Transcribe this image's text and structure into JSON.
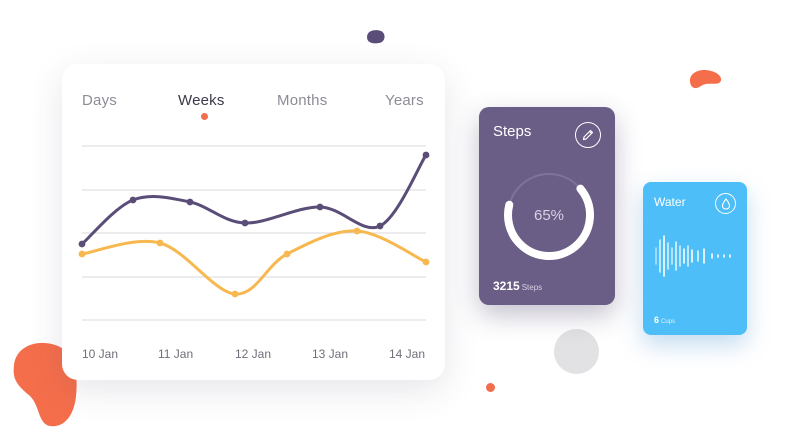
{
  "tabs": [
    {
      "label": "Days"
    },
    {
      "label": "Weeks"
    },
    {
      "label": "Months"
    },
    {
      "label": "Years"
    }
  ],
  "active_tab": "Weeks",
  "chart_data": {
    "type": "line",
    "categories": [
      "10 Jan",
      "11 Jan",
      "12 Jan",
      "13 Jan",
      "14 Jan"
    ],
    "grid": true,
    "series": [
      {
        "color": "#5a4e78",
        "points": [
          [
            82,
            244
          ],
          [
            133,
            200
          ],
          [
            190,
            202
          ],
          [
            245,
            223
          ],
          [
            320,
            207
          ],
          [
            380,
            226
          ],
          [
            426,
            155
          ]
        ]
      },
      {
        "color": "#f7b84f",
        "points": [
          [
            82,
            254
          ],
          [
            160,
            243
          ],
          [
            235,
            294
          ],
          [
            287,
            254
          ],
          [
            357,
            231
          ],
          [
            426,
            262
          ]
        ]
      }
    ]
  },
  "steps": {
    "title": "Steps",
    "percent": "65%",
    "progress": 0.65,
    "count": "3215",
    "unit": "Steps",
    "color": "#6a5d86",
    "icon": "pencil-icon"
  },
  "water": {
    "title": "Water",
    "count": "6",
    "unit": "Cups",
    "color": "#4dbef7",
    "icon": "drop-icon"
  },
  "colors": {
    "accent": "#f06e4b",
    "purple_line": "#5a4e78",
    "orange_line": "#f7b84f"
  }
}
